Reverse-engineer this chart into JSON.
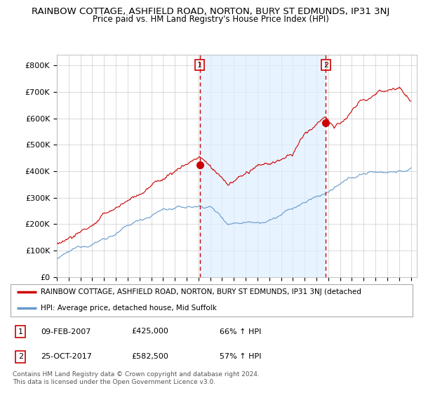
{
  "title": "RAINBOW COTTAGE, ASHFIELD ROAD, NORTON, BURY ST EDMUNDS, IP31 3NJ",
  "subtitle": "Price paid vs. HM Land Registry's House Price Index (HPI)",
  "ylabel_ticks": [
    "£0",
    "£100K",
    "£200K",
    "£300K",
    "£400K",
    "£500K",
    "£600K",
    "£700K",
    "£800K"
  ],
  "ytick_values": [
    0,
    100000,
    200000,
    300000,
    400000,
    500000,
    600000,
    700000,
    800000
  ],
  "ylim": [
    0,
    840000
  ],
  "xlim_start": 1995.0,
  "xlim_end": 2025.5,
  "marker1_x": 2007.1,
  "marker1_y": 425000,
  "marker2_x": 2017.8,
  "marker2_y": 582500,
  "line_color_red": "#cc0000",
  "line_color_blue": "#6699cc",
  "shade_color": "#ddeeff",
  "dashed_line_color": "#cc0000",
  "legend_label_red": "RAINBOW COTTAGE, ASHFIELD ROAD, NORTON, BURY ST EDMUNDS, IP31 3NJ (detached",
  "legend_label_blue": "HPI: Average price, detached house, Mid Suffolk",
  "annotation1_label": "1",
  "annotation1_date": "09-FEB-2007",
  "annotation1_price": "£425,000",
  "annotation1_hpi": "66% ↑ HPI",
  "annotation2_label": "2",
  "annotation2_date": "25-OCT-2017",
  "annotation2_price": "£582,500",
  "annotation2_hpi": "57% ↑ HPI",
  "footer": "Contains HM Land Registry data © Crown copyright and database right 2024.\nThis data is licensed under the Open Government Licence v3.0.",
  "bg_color": "#ffffff",
  "grid_color": "#cccccc",
  "title_fontsize": 9.5,
  "subtitle_fontsize": 8.5
}
